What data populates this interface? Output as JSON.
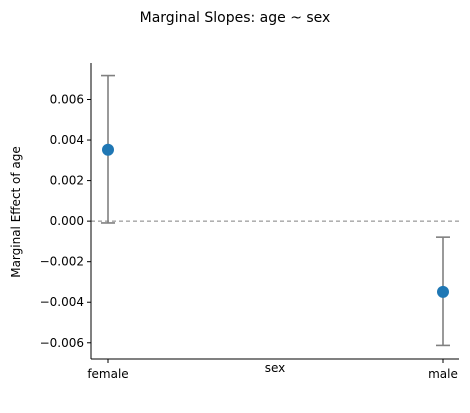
{
  "chart_data": {
    "type": "scatter",
    "title": "Marginal Slopes: age ~ sex",
    "xlabel": "sex",
    "ylabel": "Marginal Effect of age",
    "categories": [
      "female",
      "male"
    ],
    "values": [
      0.00352,
      -0.00349
    ],
    "ci_lower": [
      -9e-05,
      -0.00613
    ],
    "ci_upper": [
      0.00718,
      -0.00079
    ],
    "reference_line": 0.0,
    "ylim": [
      -0.0068,
      0.0078
    ],
    "yticks": [
      -0.006,
      -0.004,
      -0.002,
      0.0,
      0.002,
      0.004,
      0.006
    ],
    "ytick_labels": [
      "−0.006",
      "−0.004",
      "−0.002",
      "0.000",
      "0.002",
      "0.004",
      "0.006"
    ],
    "grid": false,
    "colors": {
      "point": "#1f77b4",
      "errorbar": "#808080",
      "refline": "#808080",
      "axis": "#000000"
    }
  }
}
